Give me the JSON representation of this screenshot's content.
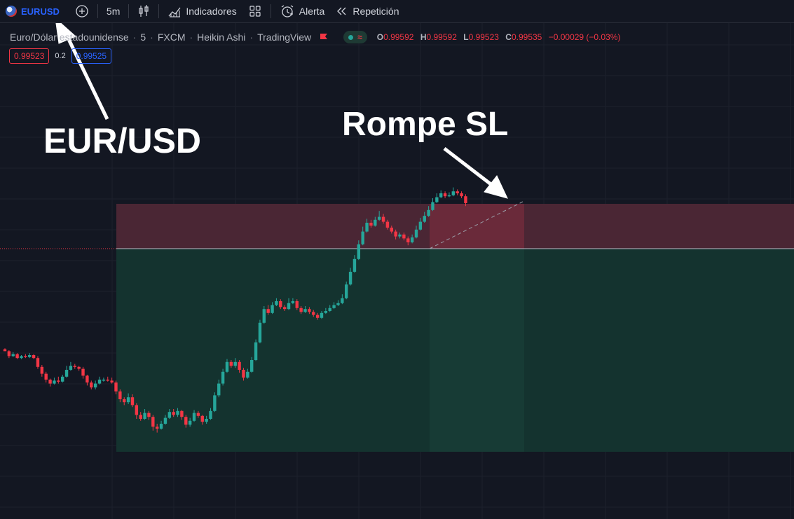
{
  "toolbar": {
    "symbol": "EURUSD",
    "interval": "5m",
    "indicators_label": "Indicadores",
    "alert_label": "Alerta",
    "replay_label": "Repetición"
  },
  "legend": {
    "title": "Euro/Dólar estadounidense",
    "interval": "5",
    "exchange": "FXCM",
    "chart_type": "Heikin Ashi",
    "source": "TradingView",
    "open_key": "O",
    "open": "0.99592",
    "high_key": "H",
    "high": "0.99592",
    "low_key": "L",
    "low": "0.99523",
    "close_key": "C",
    "close": "0.99535",
    "change": "−0.00029 (−0.03%)"
  },
  "quote": {
    "sell": "0.99523",
    "spread": "0.2",
    "buy": "0.99525"
  },
  "annotations": {
    "pair_label": "EUR/USD",
    "sl_label": "Rompe SL"
  },
  "colors": {
    "up": "#26a69a",
    "down": "#f23645",
    "stop_zone": "#4a2634",
    "target_zone": "#14332f",
    "background": "#131722"
  },
  "chart_data": {
    "type": "candlestick",
    "style": "Heikin Ashi",
    "symbol": "EURUSD",
    "series": [
      {
        "name": "EURUSD",
        "values": [
          {
            "o": 1,
            "c": -1,
            "h": 2,
            "l": -1
          },
          {
            "o": -1,
            "c": -6,
            "h": 0,
            "l": -8
          },
          {
            "o": -6,
            "c": -4,
            "h": -2,
            "l": -7
          },
          {
            "o": -4,
            "c": -8,
            "h": -3,
            "l": -9
          },
          {
            "o": -8,
            "c": -6,
            "h": -5,
            "l": -9
          },
          {
            "o": -6,
            "c": -7,
            "h": -4,
            "l": -8
          },
          {
            "o": -7,
            "c": -5,
            "h": -3,
            "l": -8
          },
          {
            "o": -5,
            "c": -8,
            "h": -4,
            "l": -9
          },
          {
            "o": -8,
            "c": -17,
            "h": -6,
            "l": -19
          },
          {
            "o": -17,
            "c": -24,
            "h": -15,
            "l": -27
          },
          {
            "o": -24,
            "c": -30,
            "h": -22,
            "l": -33
          },
          {
            "o": -30,
            "c": -34,
            "h": -29,
            "l": -37
          },
          {
            "o": -34,
            "c": -31,
            "h": -28,
            "l": -35
          },
          {
            "o": -31,
            "c": -32,
            "h": -27,
            "l": -34
          },
          {
            "o": -32,
            "c": -27,
            "h": -25,
            "l": -33
          },
          {
            "o": -27,
            "c": -20,
            "h": -16,
            "l": -28
          },
          {
            "o": -20,
            "c": -16,
            "h": -12,
            "l": -21
          },
          {
            "o": -16,
            "c": -17,
            "h": -14,
            "l": -19
          },
          {
            "o": -17,
            "c": -19,
            "h": -16,
            "l": -21
          },
          {
            "o": -19,
            "c": -26,
            "h": -17,
            "l": -29
          },
          {
            "o": -26,
            "c": -33,
            "h": -25,
            "l": -36
          },
          {
            "o": -33,
            "c": -38,
            "h": -31,
            "l": -40
          },
          {
            "o": -38,
            "c": -34,
            "h": -31,
            "l": -40
          },
          {
            "o": -34,
            "c": -30,
            "h": -27,
            "l": -35
          },
          {
            "o": -30,
            "c": -30,
            "h": -28,
            "l": -32
          },
          {
            "o": -30,
            "c": -31,
            "h": -27,
            "l": -32
          },
          {
            "o": -31,
            "c": -33,
            "h": -28,
            "l": -34
          },
          {
            "o": -33,
            "c": -42,
            "h": -31,
            "l": -45
          },
          {
            "o": -42,
            "c": -50,
            "h": -40,
            "l": -53
          },
          {
            "o": -50,
            "c": -53,
            "h": -48,
            "l": -56
          },
          {
            "o": -53,
            "c": -48,
            "h": -44,
            "l": -55
          },
          {
            "o": -48,
            "c": -56,
            "h": -45,
            "l": -58
          },
          {
            "o": -56,
            "c": -66,
            "h": -54,
            "l": -70
          },
          {
            "o": -66,
            "c": -70,
            "h": -63,
            "l": -72
          },
          {
            "o": -70,
            "c": -64,
            "h": -60,
            "l": -71
          },
          {
            "o": -64,
            "c": -68,
            "h": -62,
            "l": -71
          },
          {
            "o": -68,
            "c": -78,
            "h": -66,
            "l": -82
          },
          {
            "o": -78,
            "c": -80,
            "h": -75,
            "l": -84
          },
          {
            "o": -80,
            "c": -75,
            "h": -72,
            "l": -81
          },
          {
            "o": -75,
            "c": -69,
            "h": -66,
            "l": -76
          },
          {
            "o": -69,
            "c": -63,
            "h": -60,
            "l": -70
          },
          {
            "o": -63,
            "c": -66,
            "h": -60,
            "l": -68
          },
          {
            "o": -66,
            "c": -62,
            "h": -59,
            "l": -68
          },
          {
            "o": -62,
            "c": -68,
            "h": -61,
            "l": -71
          },
          {
            "o": -68,
            "c": -76,
            "h": -66,
            "l": -79
          },
          {
            "o": -76,
            "c": -72,
            "h": -69,
            "l": -78
          },
          {
            "o": -72,
            "c": -64,
            "h": -61,
            "l": -73
          },
          {
            "o": -64,
            "c": -67,
            "h": -62,
            "l": -69
          },
          {
            "o": -67,
            "c": -73,
            "h": -66,
            "l": -76
          },
          {
            "o": -73,
            "c": -70,
            "h": -67,
            "l": -75
          },
          {
            "o": -70,
            "c": -62,
            "h": -59,
            "l": -71
          },
          {
            "o": -62,
            "c": -46,
            "h": -43,
            "l": -63
          },
          {
            "o": -46,
            "c": -34,
            "h": -30,
            "l": -48
          },
          {
            "o": -34,
            "c": -22,
            "h": -19,
            "l": -36
          },
          {
            "o": -22,
            "c": -12,
            "h": -9,
            "l": -23
          },
          {
            "o": -12,
            "c": -16,
            "h": -10,
            "l": -18
          },
          {
            "o": -16,
            "c": -12,
            "h": -8,
            "l": -18
          },
          {
            "o": -12,
            "c": -20,
            "h": -10,
            "l": -23
          },
          {
            "o": -20,
            "c": -28,
            "h": -18,
            "l": -31
          },
          {
            "o": -28,
            "c": -22,
            "h": -19,
            "l": -29
          },
          {
            "o": -22,
            "c": -10,
            "h": -7,
            "l": -23
          },
          {
            "o": -10,
            "c": 8,
            "h": 11,
            "l": -11
          },
          {
            "o": 8,
            "c": 28,
            "h": 31,
            "l": 7
          },
          {
            "o": 28,
            "c": 42,
            "h": 45,
            "l": 27
          },
          {
            "o": 42,
            "c": 38,
            "h": 46,
            "l": 36
          },
          {
            "o": 38,
            "c": 46,
            "h": 49,
            "l": 37
          },
          {
            "o": 46,
            "c": 50,
            "h": 53,
            "l": 45
          },
          {
            "o": 50,
            "c": 44,
            "h": 52,
            "l": 42
          },
          {
            "o": 44,
            "c": 42,
            "h": 46,
            "l": 40
          },
          {
            "o": 42,
            "c": 48,
            "h": 53,
            "l": 41
          },
          {
            "o": 48,
            "c": 50,
            "h": 53,
            "l": 47
          },
          {
            "o": 50,
            "c": 43,
            "h": 52,
            "l": 41
          },
          {
            "o": 43,
            "c": 39,
            "h": 45,
            "l": 37
          },
          {
            "o": 39,
            "c": 42,
            "h": 45,
            "l": 38
          },
          {
            "o": 42,
            "c": 39,
            "h": 44,
            "l": 37
          },
          {
            "o": 39,
            "c": 36,
            "h": 41,
            "l": 34
          },
          {
            "o": 36,
            "c": 33,
            "h": 38,
            "l": 31
          },
          {
            "o": 33,
            "c": 38,
            "h": 40,
            "l": 32
          },
          {
            "o": 38,
            "c": 40,
            "h": 43,
            "l": 37
          },
          {
            "o": 40,
            "c": 43,
            "h": 46,
            "l": 39
          },
          {
            "o": 43,
            "c": 46,
            "h": 49,
            "l": 42
          },
          {
            "o": 46,
            "c": 48,
            "h": 51,
            "l": 45
          },
          {
            "o": 48,
            "c": 53,
            "h": 57,
            "l": 47
          },
          {
            "o": 53,
            "c": 67,
            "h": 70,
            "l": 52
          },
          {
            "o": 67,
            "c": 80,
            "h": 84,
            "l": 66
          },
          {
            "o": 80,
            "c": 93,
            "h": 97,
            "l": 79
          },
          {
            "o": 93,
            "c": 108,
            "h": 112,
            "l": 92
          },
          {
            "o": 108,
            "c": 121,
            "h": 126,
            "l": 107
          },
          {
            "o": 121,
            "c": 130,
            "h": 134,
            "l": 120
          },
          {
            "o": 130,
            "c": 127,
            "h": 133,
            "l": 125
          },
          {
            "o": 127,
            "c": 133,
            "h": 136,
            "l": 126
          },
          {
            "o": 133,
            "c": 136,
            "h": 142,
            "l": 132
          },
          {
            "o": 136,
            "c": 131,
            "h": 139,
            "l": 129
          },
          {
            "o": 131,
            "c": 125,
            "h": 133,
            "l": 123
          },
          {
            "o": 125,
            "c": 121,
            "h": 127,
            "l": 119
          },
          {
            "o": 121,
            "c": 116,
            "h": 123,
            "l": 113
          },
          {
            "o": 116,
            "c": 118,
            "h": 120,
            "l": 114
          },
          {
            "o": 118,
            "c": 114,
            "h": 120,
            "l": 112
          },
          {
            "o": 114,
            "c": 110,
            "h": 116,
            "l": 107
          },
          {
            "o": 110,
            "c": 115,
            "h": 118,
            "l": 109
          },
          {
            "o": 115,
            "c": 123,
            "h": 127,
            "l": 114
          },
          {
            "o": 123,
            "c": 131,
            "h": 135,
            "l": 122
          },
          {
            "o": 131,
            "c": 137,
            "h": 141,
            "l": 130
          },
          {
            "o": 137,
            "c": 143,
            "h": 147,
            "l": 136
          },
          {
            "o": 143,
            "c": 151,
            "h": 155,
            "l": 142
          },
          {
            "o": 151,
            "c": 156,
            "h": 160,
            "l": 150
          },
          {
            "o": 156,
            "c": 160,
            "h": 163,
            "l": 155
          },
          {
            "o": 160,
            "c": 157,
            "h": 162,
            "l": 155
          },
          {
            "o": 157,
            "c": 158,
            "h": 161,
            "l": 156
          },
          {
            "o": 158,
            "c": 162,
            "h": 166,
            "l": 157
          },
          {
            "o": 162,
            "c": 160,
            "h": 164,
            "l": 158
          },
          {
            "o": 160,
            "c": 157,
            "h": 162,
            "l": 155
          },
          {
            "o": 157,
            "c": 150,
            "h": 159,
            "l": 147
          }
        ]
      }
    ],
    "y_range": [
      -90,
      175
    ],
    "entry_price_level": 73,
    "stop_loss_level": 83,
    "take_profit_level": -56,
    "position_start_index": 18
  }
}
